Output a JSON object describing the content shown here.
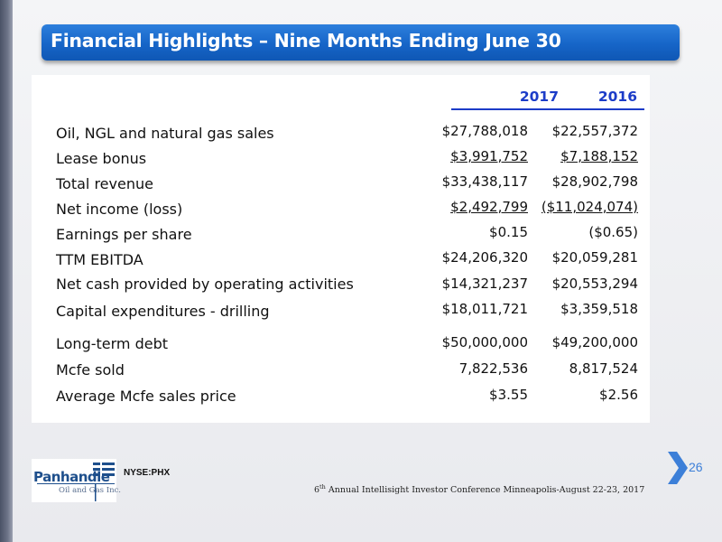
{
  "title": "Financial Highlights – Nine Months Ending June 30",
  "columns": [
    "2017",
    "2016"
  ],
  "rows": [
    {
      "label": "Oil, NGL and natural gas sales",
      "v2017": "$27,788,018",
      "v2016": "$22,557,372"
    },
    {
      "label": "Lease bonus",
      "v2017": "$3,991,752",
      "v2016": "$7,188,152"
    },
    {
      "label": "Total revenue",
      "v2017": "$33,438,117",
      "v2016": "$28,902,798"
    },
    {
      "label": "Net income (loss)",
      "v2017": "$2,492,799",
      "v2016": "($11,024,074)"
    },
    {
      "label": "Earnings per share",
      "v2017": "$0.15",
      "v2016": "($0.65)"
    },
    {
      "label": "TTM EBITDA",
      "v2017": "$24,206,320",
      "v2016": "$20,059,281"
    },
    {
      "label": "Net cash provided by operating activities",
      "v2017": "$14,321,237",
      "v2016": "$20,553,294"
    },
    {
      "label": "Capital expenditures - drilling",
      "v2017": "$18,011,721",
      "v2016": "$3,359,518"
    },
    {
      "label": "Long-term debt",
      "v2017": "$50,000,000",
      "v2016": "$49,200,000"
    },
    {
      "label": "Mcfe sold",
      "v2017": "7,822,536",
      "v2016": "8,817,524"
    },
    {
      "label": "Average Mcfe sales price",
      "v2017": "$3.55",
      "v2016": "$2.56"
    }
  ],
  "footer": {
    "ticker": "NYSE:PHX",
    "conference_ordinal": "6",
    "conference_ordinal_suffix": "th",
    "conference_text": " Annual Intellisight Investor Conference Minneapolis-August 22-23, 2017",
    "page_number": "26"
  },
  "logo": {
    "name": "Panhandle",
    "subtitle": "Oil and Gas Inc."
  },
  "colors": {
    "title_bar": "#1665c8",
    "header_blue": "#1c3cc8",
    "page_number": "#3c7fd8"
  },
  "icons": [
    "chevron-right-icon"
  ]
}
